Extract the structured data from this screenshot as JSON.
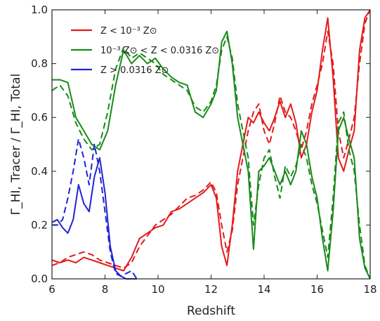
{
  "chart_data": {
    "type": "line",
    "xlabel": "Redshift",
    "ylabel": "Γ_HI, Tracer / Γ_HI, Total",
    "xlim": [
      6,
      18
    ],
    "ylim": [
      0,
      1.0
    ],
    "xticks": [
      "6",
      "8",
      "10",
      "12",
      "14",
      "16",
      "18"
    ],
    "yticks": [
      "0.0",
      "0.2",
      "0.4",
      "0.6",
      "0.8",
      "1.0"
    ],
    "grid": false,
    "legend_position": "top-left",
    "legend_labels": [
      "Z <  10⁻³ Z⊙",
      "10⁻³ Z⊙ < Z <  0.0316 Z⊙",
      "Z >  0.0316 Z⊙"
    ],
    "colors": {
      "low": "#e31a1c",
      "mid": "#1a8a1a",
      "high": "#1f24d6"
    },
    "series": [
      {
        "name": "Z < 10^-3 Z_sun",
        "style": "solid",
        "color": "#e31a1c",
        "x": [
          6.0,
          6.3,
          6.6,
          6.9,
          7.2,
          7.5,
          7.8,
          8.1,
          8.4,
          8.7,
          9.0,
          9.3,
          9.6,
          9.9,
          10.2,
          10.5,
          10.8,
          11.1,
          11.4,
          11.7,
          12.0,
          12.2,
          12.4,
          12.6,
          12.8,
          13.0,
          13.2,
          13.4,
          13.6,
          13.8,
          14.0,
          14.2,
          14.4,
          14.6,
          14.8,
          15.0,
          15.2,
          15.4,
          15.6,
          15.8,
          16.0,
          16.2,
          16.4,
          16.6,
          16.8,
          17.0,
          17.2,
          17.4,
          17.6,
          17.8,
          18.0
        ],
        "y": [
          0.07,
          0.06,
          0.07,
          0.06,
          0.08,
          0.07,
          0.06,
          0.05,
          0.04,
          0.03,
          0.08,
          0.15,
          0.17,
          0.19,
          0.2,
          0.25,
          0.26,
          0.28,
          0.3,
          0.32,
          0.35,
          0.3,
          0.12,
          0.05,
          0.2,
          0.4,
          0.5,
          0.6,
          0.58,
          0.62,
          0.58,
          0.55,
          0.6,
          0.66,
          0.6,
          0.65,
          0.58,
          0.45,
          0.5,
          0.62,
          0.7,
          0.85,
          0.97,
          0.75,
          0.45,
          0.4,
          0.48,
          0.55,
          0.85,
          0.97,
          1.0
        ]
      },
      {
        "name": "Z < 10^-3 Z_sun (dashed)",
        "style": "dashed",
        "color": "#e31a1c",
        "x": [
          6.0,
          6.3,
          6.6,
          6.9,
          7.2,
          7.5,
          7.8,
          8.1,
          8.4,
          8.7,
          9.0,
          9.3,
          9.6,
          9.9,
          10.2,
          10.5,
          10.8,
          11.1,
          11.4,
          11.7,
          12.0,
          12.2,
          12.4,
          12.6,
          12.8,
          13.0,
          13.2,
          13.4,
          13.6,
          13.8,
          14.0,
          14.2,
          14.4,
          14.6,
          14.8,
          15.0,
          15.2,
          15.4,
          15.6,
          15.8,
          16.0,
          16.2,
          16.4,
          16.6,
          16.8,
          17.0,
          17.2,
          17.4,
          17.6,
          17.8,
          18.0
        ],
        "y": [
          0.05,
          0.06,
          0.08,
          0.09,
          0.1,
          0.09,
          0.07,
          0.06,
          0.05,
          0.04,
          0.06,
          0.12,
          0.16,
          0.2,
          0.22,
          0.24,
          0.27,
          0.3,
          0.31,
          0.33,
          0.36,
          0.32,
          0.2,
          0.1,
          0.18,
          0.35,
          0.45,
          0.55,
          0.62,
          0.65,
          0.55,
          0.5,
          0.58,
          0.68,
          0.62,
          0.6,
          0.55,
          0.48,
          0.55,
          0.65,
          0.72,
          0.8,
          0.92,
          0.8,
          0.55,
          0.45,
          0.52,
          0.6,
          0.8,
          0.95,
          1.0
        ]
      },
      {
        "name": "10^-3 Z_sun < Z < 0.0316 Z_sun",
        "style": "solid",
        "color": "#1a8a1a",
        "x": [
          6.0,
          6.3,
          6.6,
          6.9,
          7.2,
          7.5,
          7.8,
          8.1,
          8.4,
          8.7,
          9.0,
          9.3,
          9.6,
          9.9,
          10.2,
          10.5,
          10.8,
          11.1,
          11.4,
          11.7,
          12.0,
          12.2,
          12.4,
          12.6,
          12.8,
          13.0,
          13.2,
          13.4,
          13.6,
          13.8,
          14.0,
          14.2,
          14.4,
          14.6,
          14.8,
          15.0,
          15.2,
          15.4,
          15.6,
          15.8,
          16.0,
          16.2,
          16.4,
          16.6,
          16.8,
          17.0,
          17.2,
          17.4,
          17.6,
          17.8,
          18.0
        ],
        "y": [
          0.74,
          0.74,
          0.73,
          0.6,
          0.55,
          0.5,
          0.48,
          0.55,
          0.72,
          0.85,
          0.8,
          0.83,
          0.8,
          0.82,
          0.78,
          0.75,
          0.73,
          0.72,
          0.62,
          0.6,
          0.65,
          0.7,
          0.88,
          0.92,
          0.8,
          0.6,
          0.5,
          0.4,
          0.11,
          0.4,
          0.42,
          0.45,
          0.4,
          0.35,
          0.4,
          0.35,
          0.4,
          0.55,
          0.5,
          0.38,
          0.3,
          0.15,
          0.03,
          0.25,
          0.55,
          0.6,
          0.52,
          0.45,
          0.15,
          0.04,
          0.0
        ]
      },
      {
        "name": "10^-3 Z_sun < Z < 0.0316 Z_sun (dashed)",
        "style": "dashed",
        "color": "#1a8a1a",
        "x": [
          6.0,
          6.3,
          6.6,
          6.9,
          7.2,
          7.5,
          7.8,
          8.1,
          8.4,
          8.7,
          9.0,
          9.3,
          9.6,
          9.9,
          10.2,
          10.5,
          10.8,
          11.1,
          11.4,
          11.7,
          12.0,
          12.2,
          12.4,
          12.6,
          12.8,
          13.0,
          13.2,
          13.4,
          13.6,
          13.8,
          14.0,
          14.2,
          14.4,
          14.6,
          14.8,
          15.0,
          15.2,
          15.4,
          15.6,
          15.8,
          16.0,
          16.2,
          16.4,
          16.6,
          16.8,
          17.0,
          17.2,
          17.4,
          17.6,
          17.8,
          18.0
        ],
        "y": [
          0.7,
          0.72,
          0.68,
          0.58,
          0.52,
          0.48,
          0.5,
          0.62,
          0.78,
          0.86,
          0.82,
          0.84,
          0.82,
          0.8,
          0.76,
          0.74,
          0.72,
          0.7,
          0.64,
          0.62,
          0.66,
          0.72,
          0.85,
          0.9,
          0.82,
          0.65,
          0.55,
          0.45,
          0.2,
          0.35,
          0.45,
          0.48,
          0.38,
          0.3,
          0.42,
          0.38,
          0.42,
          0.5,
          0.45,
          0.35,
          0.28,
          0.18,
          0.08,
          0.3,
          0.58,
          0.62,
          0.48,
          0.4,
          0.2,
          0.05,
          0.0
        ]
      },
      {
        "name": "Z > 0.0316 Z_sun",
        "style": "solid",
        "color": "#1f24d6",
        "x": [
          6.0,
          6.2,
          6.4,
          6.6,
          6.8,
          7.0,
          7.2,
          7.4,
          7.6,
          7.8,
          8.0,
          8.2,
          8.4,
          8.6,
          8.8,
          9.0,
          9.2
        ],
        "y": [
          0.21,
          0.22,
          0.19,
          0.17,
          0.22,
          0.35,
          0.28,
          0.25,
          0.38,
          0.45,
          0.32,
          0.12,
          0.03,
          0.01,
          0.0,
          0.0,
          0.0
        ]
      },
      {
        "name": "Z > 0.0316 Z_sun (dashed)",
        "style": "dashed",
        "color": "#1f24d6",
        "x": [
          6.0,
          6.2,
          6.4,
          6.6,
          6.8,
          7.0,
          7.2,
          7.4,
          7.6,
          7.8,
          8.0,
          8.2,
          8.4,
          8.6,
          8.8,
          9.0,
          9.2
        ],
        "y": [
          0.2,
          0.2,
          0.22,
          0.3,
          0.4,
          0.52,
          0.45,
          0.35,
          0.5,
          0.4,
          0.25,
          0.1,
          0.02,
          0.01,
          0.02,
          0.03,
          0.0
        ]
      }
    ]
  }
}
